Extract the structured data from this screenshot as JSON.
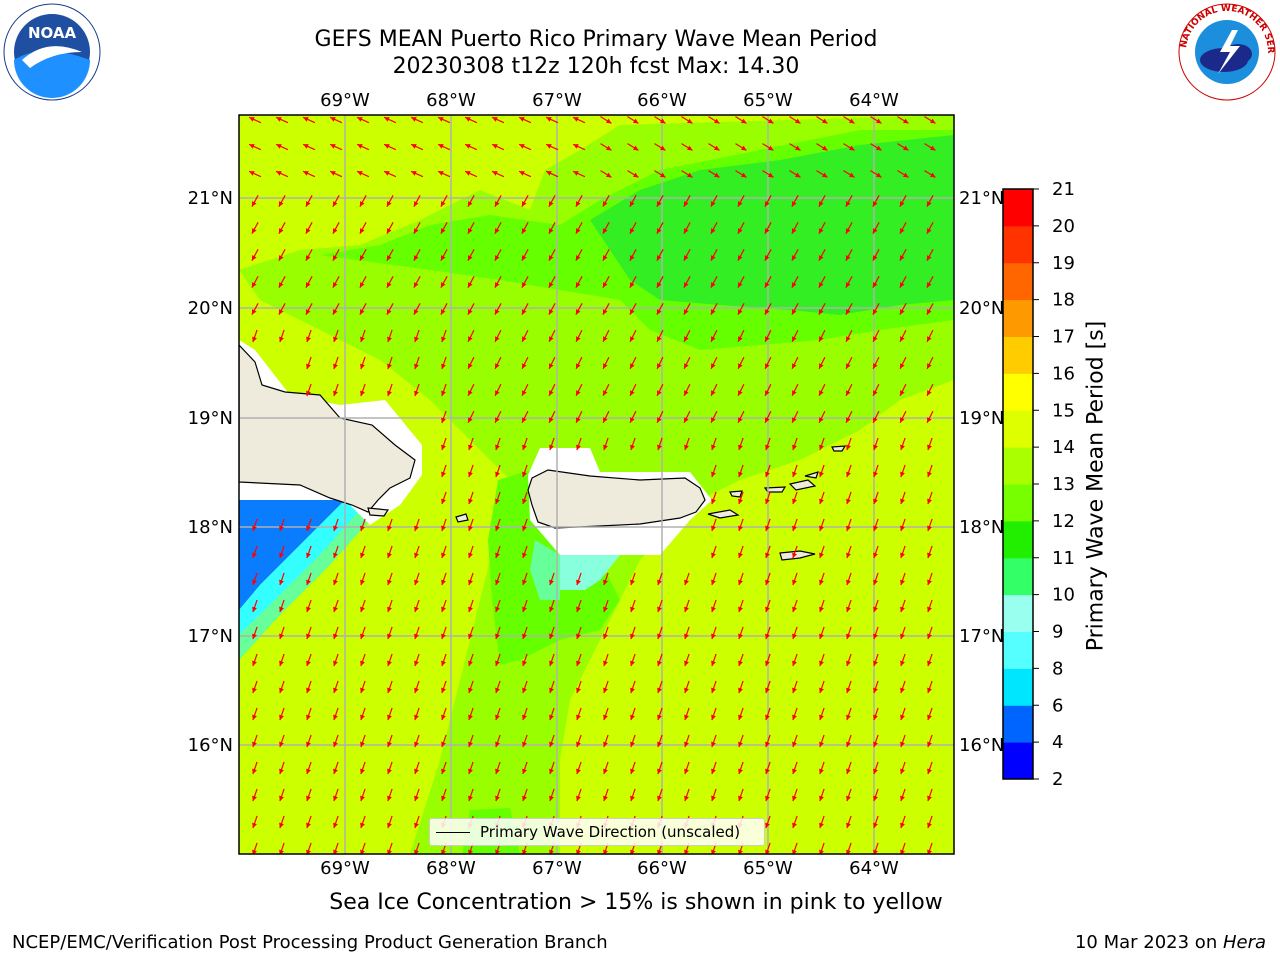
{
  "header": {
    "title_line1": "GEFS MEAN Puerto Rico Primary Wave Mean Period",
    "title_line2": "20230308 t12z 120h fcst   Max: 14.30"
  },
  "logos": {
    "left": {
      "icon": "noaa-logo",
      "text": "NOAA"
    },
    "right": {
      "icon": "nws-logo",
      "text": "NATIONAL WEATHER SERVICE"
    }
  },
  "map": {
    "lon_labels": [
      "69°W",
      "68°W",
      "67°W",
      "66°W",
      "65°W",
      "64°W"
    ],
    "lat_labels": [
      "21°N",
      "20°N",
      "19°N",
      "18°N",
      "17°N",
      "16°N"
    ],
    "legend_label": "Primary Wave Direction (unscaled)",
    "arrow_color": "#ff0000",
    "land_color": "#efebdc"
  },
  "colorbar": {
    "label": "Primary Wave Mean Period [s]",
    "ticks": [
      "2",
      "4",
      "6",
      "8",
      "9",
      "10",
      "11",
      "12",
      "13",
      "14",
      "15",
      "16",
      "17",
      "18",
      "19",
      "20",
      "21"
    ],
    "colors": [
      "#0000ff",
      "#0064ff",
      "#00e6ff",
      "#55ffff",
      "#99ffee",
      "#33ff66",
      "#22ee00",
      "#77ff00",
      "#aaff00",
      "#ddff00",
      "#ffff00",
      "#ffcc00",
      "#ff9900",
      "#ff6600",
      "#ff3300",
      "#ff0000"
    ]
  },
  "caption": "Sea Ice Concentration > 15% is shown in pink to yellow",
  "footer": {
    "left": "NCEP/EMC/Verification Post Processing Product Generation Branch",
    "right_date": "10 Mar 2023 on ",
    "right_host": "Hera"
  }
}
